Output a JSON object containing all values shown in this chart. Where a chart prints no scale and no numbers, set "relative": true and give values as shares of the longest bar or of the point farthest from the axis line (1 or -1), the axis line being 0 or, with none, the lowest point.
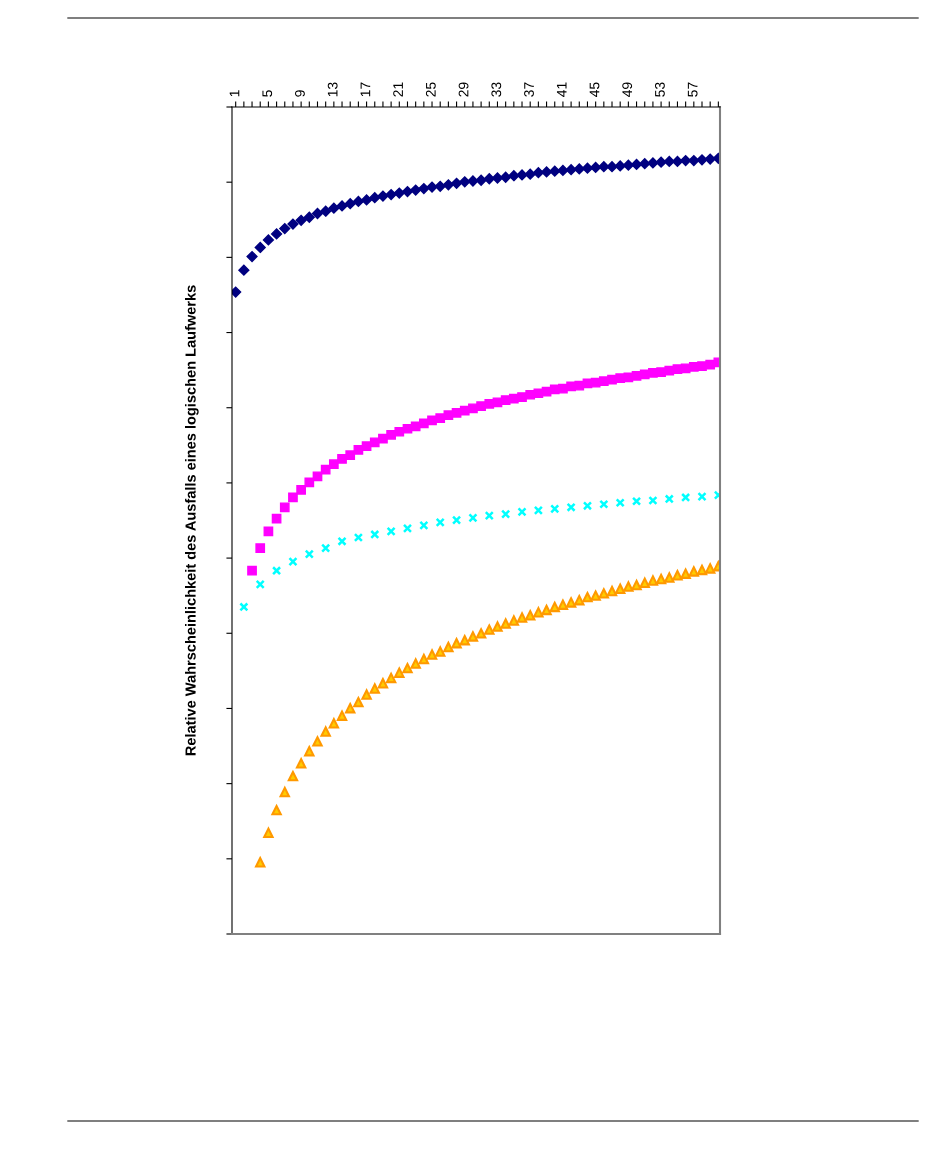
{
  "chart_data": {
    "type": "scatter",
    "relative": true,
    "ylabel": "Relative Wahrscheinlichkeit des Ausfalls eines logischen Laufwerks",
    "tick_labels": "x",
    "grid": false,
    "categories": [
      "1",
      null,
      null,
      null,
      "5",
      null,
      null,
      null,
      "9",
      null,
      null,
      null,
      "13",
      null,
      null,
      null,
      "17",
      null,
      null,
      null,
      "21",
      null,
      null,
      null,
      "25",
      null,
      null,
      null,
      "29",
      null,
      null,
      null,
      "33",
      null,
      null,
      null,
      "37",
      null,
      null,
      null,
      "41",
      null,
      null,
      null,
      "45",
      null,
      null,
      null,
      "49",
      null,
      null,
      null,
      "53",
      null,
      null,
      null,
      "57",
      null,
      null,
      null
    ],
    "series": [
      {
        "color": "#000080",
        "marker": "diamond",
        "values": [
          -0.245,
          -0.216,
          -0.198,
          -0.186,
          -0.176,
          -0.168,
          -0.161,
          -0.155,
          -0.15,
          -0.146,
          -0.141,
          -0.138,
          -0.134,
          -0.131,
          -0.128,
          -0.125,
          -0.123,
          -0.12,
          -0.118,
          -0.116,
          -0.114,
          -0.112,
          -0.11,
          -0.108,
          -0.106,
          -0.105,
          -0.103,
          -0.101,
          -0.099,
          -0.098,
          -0.097,
          -0.095,
          -0.094,
          -0.093,
          -0.091,
          -0.09,
          -0.089,
          -0.087,
          -0.086,
          -0.085,
          -0.084,
          -0.083,
          -0.082,
          -0.081,
          -0.08,
          -0.079,
          -0.079,
          -0.078,
          -0.077,
          -0.076,
          -0.075,
          -0.074,
          -0.073,
          -0.072,
          -0.072,
          -0.071,
          -0.071,
          -0.07,
          -0.069,
          -0.068
        ]
      },
      {
        "color": "#ff00ff",
        "marker": "square",
        "values": [
          null,
          null,
          -0.614,
          -0.584,
          -0.562,
          -0.545,
          -0.53,
          -0.517,
          -0.507,
          -0.497,
          -0.489,
          -0.48,
          -0.473,
          -0.466,
          -0.461,
          -0.454,
          -0.449,
          -0.444,
          -0.439,
          -0.434,
          -0.43,
          -0.426,
          -0.423,
          -0.419,
          -0.415,
          -0.412,
          -0.408,
          -0.405,
          -0.402,
          -0.399,
          -0.396,
          -0.393,
          -0.391,
          -0.388,
          -0.386,
          -0.384,
          -0.381,
          -0.379,
          -0.377,
          -0.374,
          -0.373,
          -0.37,
          -0.369,
          -0.366,
          -0.365,
          -0.363,
          -0.361,
          -0.359,
          -0.358,
          -0.356,
          -0.354,
          -0.352,
          -0.351,
          -0.349,
          -0.347,
          -0.346,
          -0.344,
          -0.343,
          -0.341,
          -0.338
        ]
      },
      {
        "color": "#00ffff",
        "marker": "cross",
        "values": [
          null,
          -0.662,
          null,
          -0.632,
          null,
          -0.614,
          null,
          -0.602,
          null,
          -0.592,
          null,
          -0.584,
          null,
          -0.575,
          null,
          -0.57,
          null,
          -0.566,
          null,
          -0.562,
          null,
          -0.558,
          null,
          -0.554,
          null,
          -0.55,
          null,
          -0.547,
          null,
          -0.544,
          null,
          -0.541,
          null,
          -0.539,
          null,
          -0.536,
          null,
          -0.534,
          null,
          -0.532,
          null,
          -0.53,
          null,
          -0.528,
          null,
          -0.526,
          null,
          -0.524,
          null,
          -0.522,
          null,
          -0.521,
          null,
          -0.519,
          null,
          -0.517,
          null,
          -0.516,
          null,
          -0.514
        ]
      },
      {
        "color": "#ff9900",
        "marker": "triangle",
        "values": [
          null,
          null,
          null,
          -1,
          -0.961,
          -0.931,
          -0.907,
          -0.886,
          -0.869,
          -0.853,
          -0.84,
          -0.827,
          -0.816,
          -0.806,
          -0.796,
          -0.788,
          -0.778,
          -0.77,
          -0.763,
          -0.756,
          -0.749,
          -0.743,
          -0.737,
          -0.731,
          -0.725,
          -0.721,
          -0.715,
          -0.71,
          -0.706,
          -0.701,
          -0.697,
          -0.692,
          -0.688,
          -0.684,
          -0.68,
          -0.676,
          -0.673,
          -0.669,
          -0.666,
          -0.662,
          -0.659,
          -0.656,
          -0.653,
          -0.649,
          -0.647,
          -0.644,
          -0.641,
          -0.638,
          -0.635,
          -0.633,
          -0.63,
          -0.627,
          -0.625,
          -0.623,
          -0.62,
          -0.618,
          -0.615,
          -0.613,
          -0.611,
          -0.608
        ]
      }
    ]
  }
}
